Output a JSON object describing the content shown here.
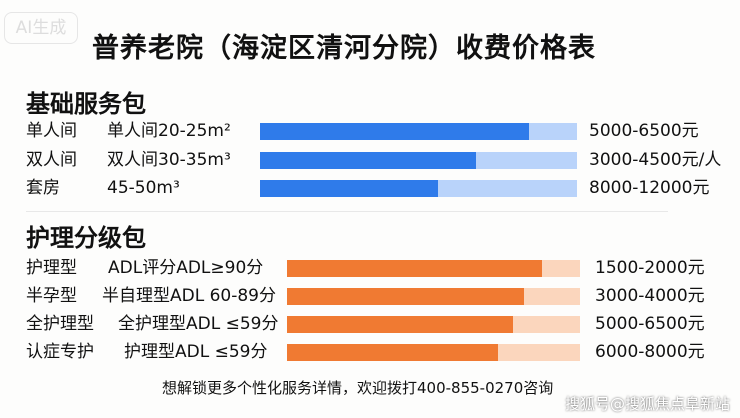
{
  "badge": "AI生成",
  "title": "普养老院（海淀区清河分院）收费价格表",
  "basic": {
    "heading": "基础服务包",
    "color": "#2f7bea",
    "track_color": "#b9d3fa",
    "rows": [
      {
        "type": "单人间",
        "desc": "单人间20-25m²",
        "price": "5000-6500元",
        "fill": 0.85
      },
      {
        "type": "双人间",
        "desc": "双人间30-35m³",
        "price": "3000-4500元/人",
        "fill": 0.68
      },
      {
        "type": "套房",
        "desc": "45-50m³",
        "price": "8000-12000元",
        "fill": 0.56
      }
    ]
  },
  "care": {
    "heading": "护理分级包",
    "color": "#f07a32",
    "track_color": "#fbd6bd",
    "rows": [
      {
        "type": "护理型",
        "desc": "ADL评分ADL≥90分",
        "price": "1500-2000元",
        "fill": 0.87
      },
      {
        "type": "半孕型",
        "desc": "半自理型ADL 60-89分",
        "price": "3000-4000元",
        "fill": 0.81
      },
      {
        "type": "全护理型",
        "desc": "全护理型ADL ≤59分",
        "price": "5000-6500元",
        "fill": 0.77
      },
      {
        "type": "认症专护",
        "desc": "护理型ADL ≤59分",
        "price": "6000-8000元",
        "fill": 0.72
      }
    ]
  },
  "footer": "想解锁更多个性化服务详情，欢迎拨打400-855-0270咨询",
  "watermark": "搜狐号@搜狐焦点阜新站"
}
